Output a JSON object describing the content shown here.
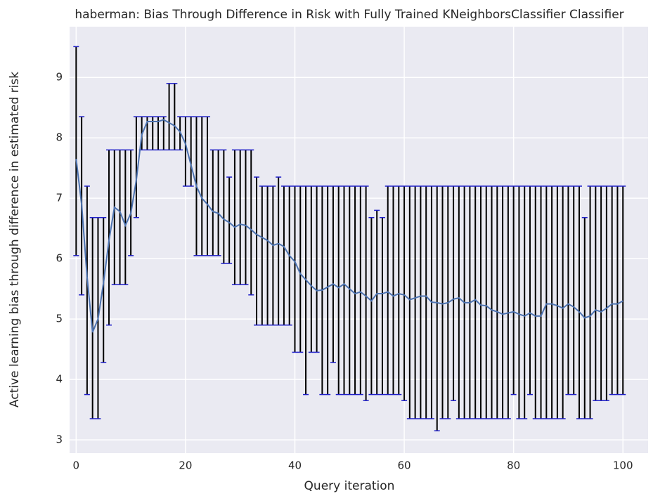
{
  "chart_data": {
    "type": "line_errorbar",
    "title": "haberman: Bias Through Difference in Risk with Fully Trained KNeighborsClassifier Classifier",
    "xlabel": "Query iteration",
    "ylabel": "Active learning bias through difference in estimated risk",
    "xlim": [
      -1.2,
      104.6
    ],
    "ylim": [
      2.78,
      9.84
    ],
    "xticks": [
      0,
      20,
      40,
      60,
      80,
      100
    ],
    "yticks": [
      3,
      4,
      5,
      6,
      7,
      8,
      9
    ],
    "grid": true,
    "x": [
      0,
      1,
      2,
      3,
      4,
      5,
      6,
      7,
      8,
      9,
      10,
      11,
      12,
      13,
      14,
      15,
      16,
      17,
      18,
      19,
      20,
      21,
      22,
      23,
      24,
      25,
      26,
      27,
      28,
      29,
      30,
      31,
      32,
      33,
      34,
      35,
      36,
      37,
      38,
      39,
      40,
      41,
      42,
      43,
      44,
      45,
      46,
      47,
      48,
      49,
      50,
      51,
      52,
      53,
      54,
      55,
      56,
      57,
      58,
      59,
      60,
      61,
      62,
      63,
      64,
      65,
      66,
      67,
      68,
      69,
      70,
      71,
      72,
      73,
      74,
      75,
      76,
      77,
      78,
      79,
      80,
      81,
      82,
      83,
      84,
      85,
      86,
      87,
      88,
      89,
      90,
      91,
      92,
      93,
      94,
      95,
      96,
      97,
      98,
      99,
      100
    ],
    "series": [
      {
        "color": "#4c72b0",
        "errorbar_color": "#000000",
        "cap_color": "#1f1fc8",
        "values": [
          7.65,
          6.9,
          5.7,
          4.78,
          5.0,
          5.6,
          6.3,
          6.85,
          6.78,
          6.55,
          6.75,
          7.3,
          8.05,
          8.27,
          8.27,
          8.27,
          8.3,
          8.25,
          8.2,
          8.1,
          7.9,
          7.55,
          7.2,
          7.0,
          6.9,
          6.78,
          6.75,
          6.65,
          6.6,
          6.52,
          6.57,
          6.55,
          6.48,
          6.4,
          6.35,
          6.3,
          6.22,
          6.25,
          6.2,
          6.05,
          5.95,
          5.75,
          5.65,
          5.55,
          5.47,
          5.48,
          5.53,
          5.58,
          5.52,
          5.58,
          5.5,
          5.42,
          5.45,
          5.38,
          5.3,
          5.42,
          5.42,
          5.45,
          5.38,
          5.42,
          5.4,
          5.32,
          5.35,
          5.38,
          5.38,
          5.28,
          5.27,
          5.25,
          5.27,
          5.33,
          5.35,
          5.27,
          5.27,
          5.32,
          5.23,
          5.22,
          5.15,
          5.12,
          5.08,
          5.1,
          5.12,
          5.08,
          5.05,
          5.1,
          5.05,
          5.05,
          5.25,
          5.25,
          5.22,
          5.18,
          5.25,
          5.2,
          5.12,
          5.02,
          5.05,
          5.15,
          5.12,
          5.18,
          5.25,
          5.25,
          5.3
        ],
        "upper": [
          9.51,
          8.35,
          7.2,
          6.68,
          6.68,
          6.68,
          7.8,
          7.8,
          7.8,
          7.8,
          7.8,
          8.35,
          8.35,
          8.35,
          8.35,
          8.35,
          8.35,
          8.9,
          8.9,
          8.35,
          8.35,
          8.35,
          8.35,
          8.35,
          8.35,
          7.8,
          7.8,
          7.8,
          7.35,
          7.8,
          7.8,
          7.8,
          7.8,
          7.35,
          7.2,
          7.2,
          7.2,
          7.35,
          7.2,
          7.2,
          7.2,
          7.2,
          7.2,
          7.2,
          7.2,
          7.2,
          7.2,
          7.2,
          7.2,
          7.2,
          7.2,
          7.2,
          7.2,
          7.2,
          6.68,
          6.8,
          6.68,
          7.2,
          7.2,
          7.2,
          7.2,
          7.2,
          7.2,
          7.2,
          7.2,
          7.2,
          7.2,
          7.2,
          7.2,
          7.2,
          7.2,
          7.2,
          7.2,
          7.2,
          7.2,
          7.2,
          7.2,
          7.2,
          7.2,
          7.2,
          7.2,
          7.2,
          7.2,
          7.2,
          7.2,
          7.2,
          7.2,
          7.2,
          7.2,
          7.2,
          7.2,
          7.2,
          7.2,
          6.68,
          7.2,
          7.2,
          7.2,
          7.2,
          7.2,
          7.2,
          7.2
        ],
        "lower": [
          6.05,
          5.4,
          3.75,
          3.35,
          3.35,
          4.28,
          4.9,
          5.57,
          5.57,
          5.57,
          6.05,
          6.68,
          7.8,
          7.8,
          7.8,
          7.8,
          7.8,
          7.8,
          7.8,
          7.8,
          7.2,
          7.2,
          6.05,
          6.05,
          6.05,
          6.05,
          6.05,
          5.92,
          5.92,
          5.57,
          5.57,
          5.57,
          5.4,
          4.9,
          4.9,
          4.9,
          4.9,
          4.9,
          4.9,
          4.9,
          4.45,
          4.45,
          3.75,
          4.45,
          4.45,
          3.75,
          3.75,
          4.28,
          3.75,
          3.75,
          3.75,
          3.75,
          3.75,
          3.65,
          3.75,
          3.75,
          3.75,
          3.75,
          3.75,
          3.75,
          3.65,
          3.35,
          3.35,
          3.35,
          3.35,
          3.35,
          3.15,
          3.35,
          3.35,
          3.65,
          3.35,
          3.35,
          3.35,
          3.35,
          3.35,
          3.35,
          3.35,
          3.35,
          3.35,
          3.35,
          3.75,
          3.35,
          3.35,
          3.75,
          3.35,
          3.35,
          3.35,
          3.35,
          3.35,
          3.35,
          3.75,
          3.75,
          3.35,
          3.35,
          3.35,
          3.65,
          3.65,
          3.65,
          3.75,
          3.75,
          3.75
        ]
      }
    ]
  }
}
